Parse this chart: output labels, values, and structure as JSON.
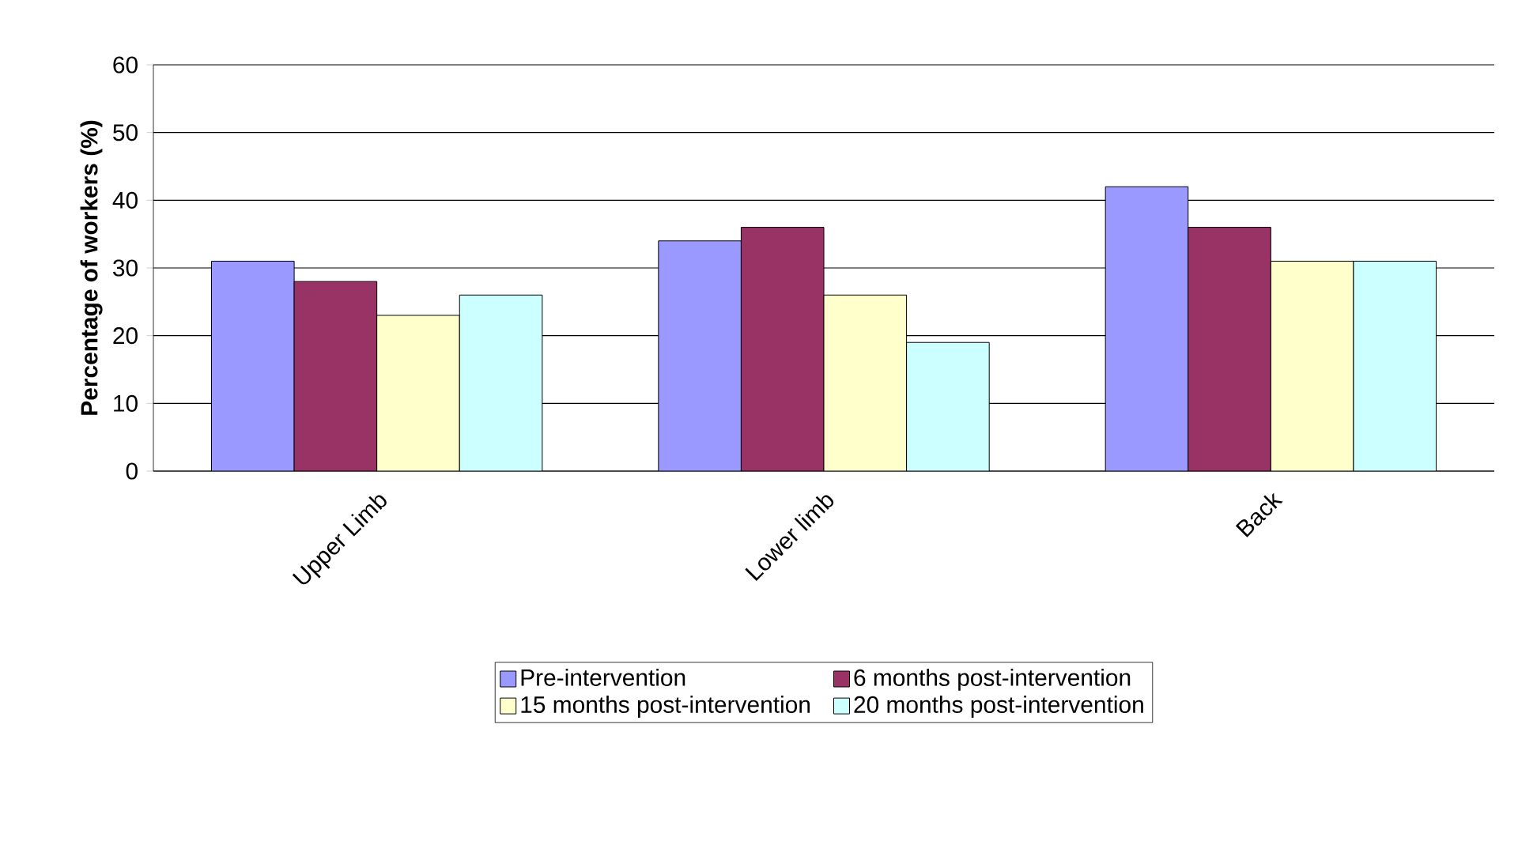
{
  "chart_data": {
    "type": "bar",
    "ylabel": "Percentage of workers (%)",
    "categories": [
      "Upper Limb",
      "Lower limb",
      "Back"
    ],
    "series": [
      {
        "name": "Pre-intervention",
        "color": "#9999ff",
        "values": [
          31,
          34,
          42
        ]
      },
      {
        "name": "6 months post-intervention",
        "color": "#993366",
        "values": [
          28,
          36,
          36
        ]
      },
      {
        "name": "15 months post-intervention",
        "color": "#ffffcc",
        "values": [
          23,
          26,
          31
        ]
      },
      {
        "name": "20 months post-intervention",
        "color": "#ccffff",
        "values": [
          26,
          19,
          31
        ]
      }
    ],
    "ylim": [
      0,
      60
    ],
    "yticks": [
      0,
      10,
      20,
      30,
      40,
      50,
      60
    ],
    "grid": "y",
    "legend": "bottom"
  }
}
